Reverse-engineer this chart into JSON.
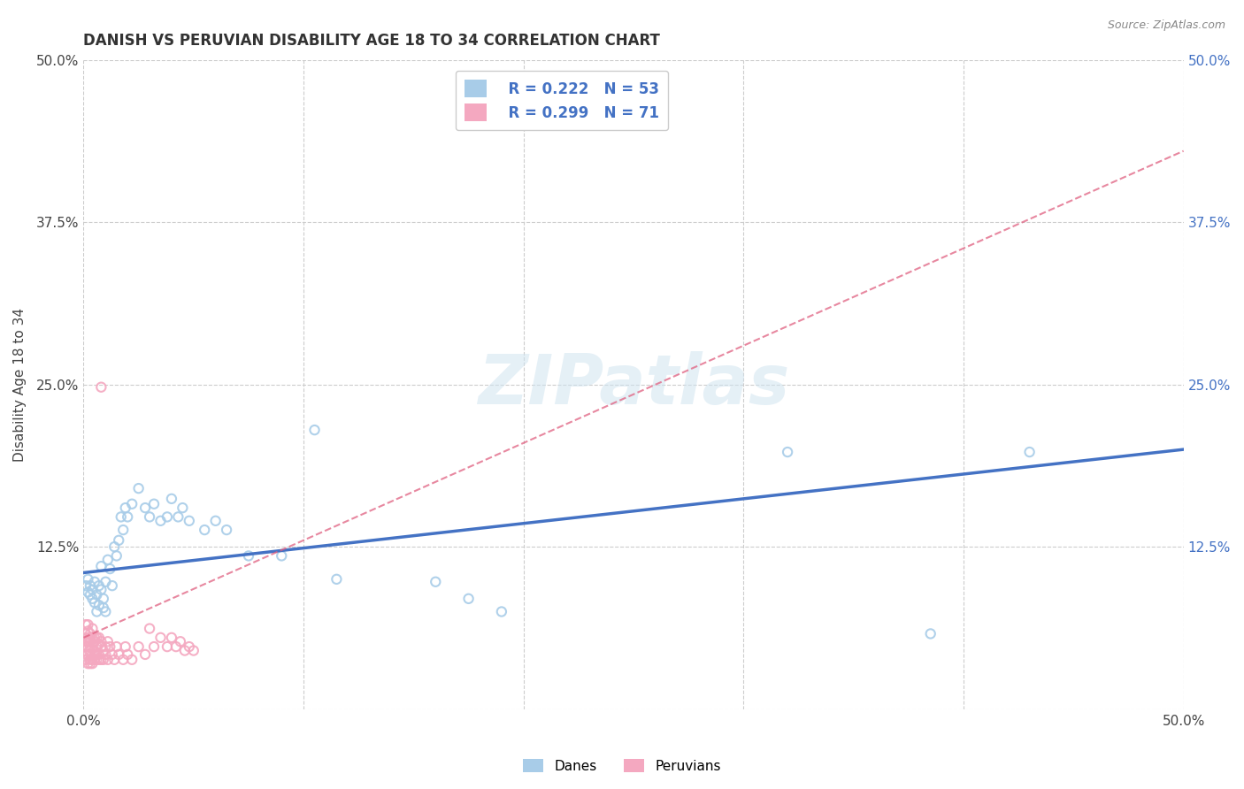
{
  "title": "DANISH VS PERUVIAN DISABILITY AGE 18 TO 34 CORRELATION CHART",
  "source": "Source: ZipAtlas.com",
  "ylabel": "Disability Age 18 to 34",
  "xlim": [
    0.0,
    0.5
  ],
  "ylim": [
    0.0,
    0.5
  ],
  "legend_blue_r": "R = 0.222",
  "legend_blue_n": "N = 53",
  "legend_pink_r": "R = 0.299",
  "legend_pink_n": "N = 71",
  "legend_label_danes": "Danes",
  "legend_label_peruvians": "Peruvians",
  "blue_color": "#a8cce8",
  "pink_color": "#f4a8c0",
  "legend_text_color": "#4472c4",
  "blue_line_color": "#4472c4",
  "pink_line_color": "#e06080",
  "right_axis_color": "#4472c4",
  "background_color": "#ffffff",
  "grid_color": "#cccccc",
  "watermark": "ZIPatlas",
  "danes_x": [
    0.001,
    0.002,
    0.002,
    0.003,
    0.003,
    0.004,
    0.004,
    0.005,
    0.005,
    0.006,
    0.006,
    0.007,
    0.007,
    0.008,
    0.008,
    0.009,
    0.009,
    0.01,
    0.01,
    0.011,
    0.012,
    0.013,
    0.014,
    0.015,
    0.016,
    0.017,
    0.018,
    0.019,
    0.02,
    0.022,
    0.025,
    0.028,
    0.03,
    0.032,
    0.035,
    0.038,
    0.04,
    0.043,
    0.045,
    0.048,
    0.055,
    0.06,
    0.065,
    0.075,
    0.09,
    0.105,
    0.115,
    0.16,
    0.175,
    0.19,
    0.32,
    0.385,
    0.43
  ],
  "danes_y": [
    0.095,
    0.1,
    0.09,
    0.088,
    0.095,
    0.085,
    0.092,
    0.082,
    0.098,
    0.088,
    0.075,
    0.095,
    0.08,
    0.092,
    0.11,
    0.078,
    0.085,
    0.075,
    0.098,
    0.115,
    0.108,
    0.095,
    0.125,
    0.118,
    0.13,
    0.148,
    0.138,
    0.155,
    0.148,
    0.158,
    0.17,
    0.155,
    0.148,
    0.158,
    0.145,
    0.148,
    0.162,
    0.148,
    0.155,
    0.145,
    0.138,
    0.145,
    0.138,
    0.118,
    0.118,
    0.215,
    0.1,
    0.098,
    0.085,
    0.075,
    0.198,
    0.058,
    0.198
  ],
  "peruvians_x": [
    0.001,
    0.001,
    0.001,
    0.001,
    0.001,
    0.001,
    0.002,
    0.002,
    0.002,
    0.002,
    0.002,
    0.002,
    0.002,
    0.003,
    0.003,
    0.003,
    0.003,
    0.003,
    0.003,
    0.003,
    0.003,
    0.004,
    0.004,
    0.004,
    0.004,
    0.004,
    0.004,
    0.005,
    0.005,
    0.005,
    0.005,
    0.005,
    0.006,
    0.006,
    0.006,
    0.006,
    0.007,
    0.007,
    0.007,
    0.007,
    0.008,
    0.008,
    0.008,
    0.009,
    0.009,
    0.01,
    0.01,
    0.011,
    0.011,
    0.012,
    0.013,
    0.014,
    0.015,
    0.016,
    0.018,
    0.019,
    0.02,
    0.022,
    0.025,
    0.028,
    0.03,
    0.032,
    0.035,
    0.038,
    0.04,
    0.042,
    0.044,
    0.046,
    0.048,
    0.05,
    0.008
  ],
  "peruvians_y": [
    0.058,
    0.048,
    0.065,
    0.042,
    0.052,
    0.038,
    0.06,
    0.048,
    0.055,
    0.042,
    0.065,
    0.035,
    0.052,
    0.058,
    0.048,
    0.042,
    0.055,
    0.038,
    0.052,
    0.045,
    0.035,
    0.055,
    0.048,
    0.042,
    0.035,
    0.062,
    0.038,
    0.052,
    0.045,
    0.038,
    0.055,
    0.042,
    0.048,
    0.038,
    0.055,
    0.042,
    0.05,
    0.042,
    0.038,
    0.055,
    0.048,
    0.038,
    0.052,
    0.045,
    0.038,
    0.048,
    0.042,
    0.052,
    0.038,
    0.048,
    0.042,
    0.038,
    0.048,
    0.042,
    0.038,
    0.048,
    0.042,
    0.038,
    0.048,
    0.042,
    0.062,
    0.048,
    0.055,
    0.048,
    0.055,
    0.048,
    0.052,
    0.045,
    0.048,
    0.045,
    0.248
  ],
  "blue_line_x": [
    0.0,
    0.5
  ],
  "blue_line_y": [
    0.105,
    0.2
  ],
  "pink_line_x": [
    0.0,
    0.5
  ],
  "pink_line_y": [
    0.055,
    0.43
  ],
  "xticks": [
    0.0,
    0.1,
    0.2,
    0.3,
    0.4,
    0.5
  ],
  "xtick_labels": [
    "0.0%",
    "",
    "",
    "",
    "",
    "50.0%"
  ],
  "yticks_left": [
    0.0,
    0.125,
    0.25,
    0.375,
    0.5
  ],
  "ytick_labels_left": [
    "",
    "12.5%",
    "25.0%",
    "37.5%",
    "50.0%"
  ],
  "yticks_right": [
    0.125,
    0.25,
    0.375,
    0.5
  ],
  "ytick_labels_right": [
    "12.5%",
    "25.0%",
    "37.5%",
    "50.0%"
  ]
}
